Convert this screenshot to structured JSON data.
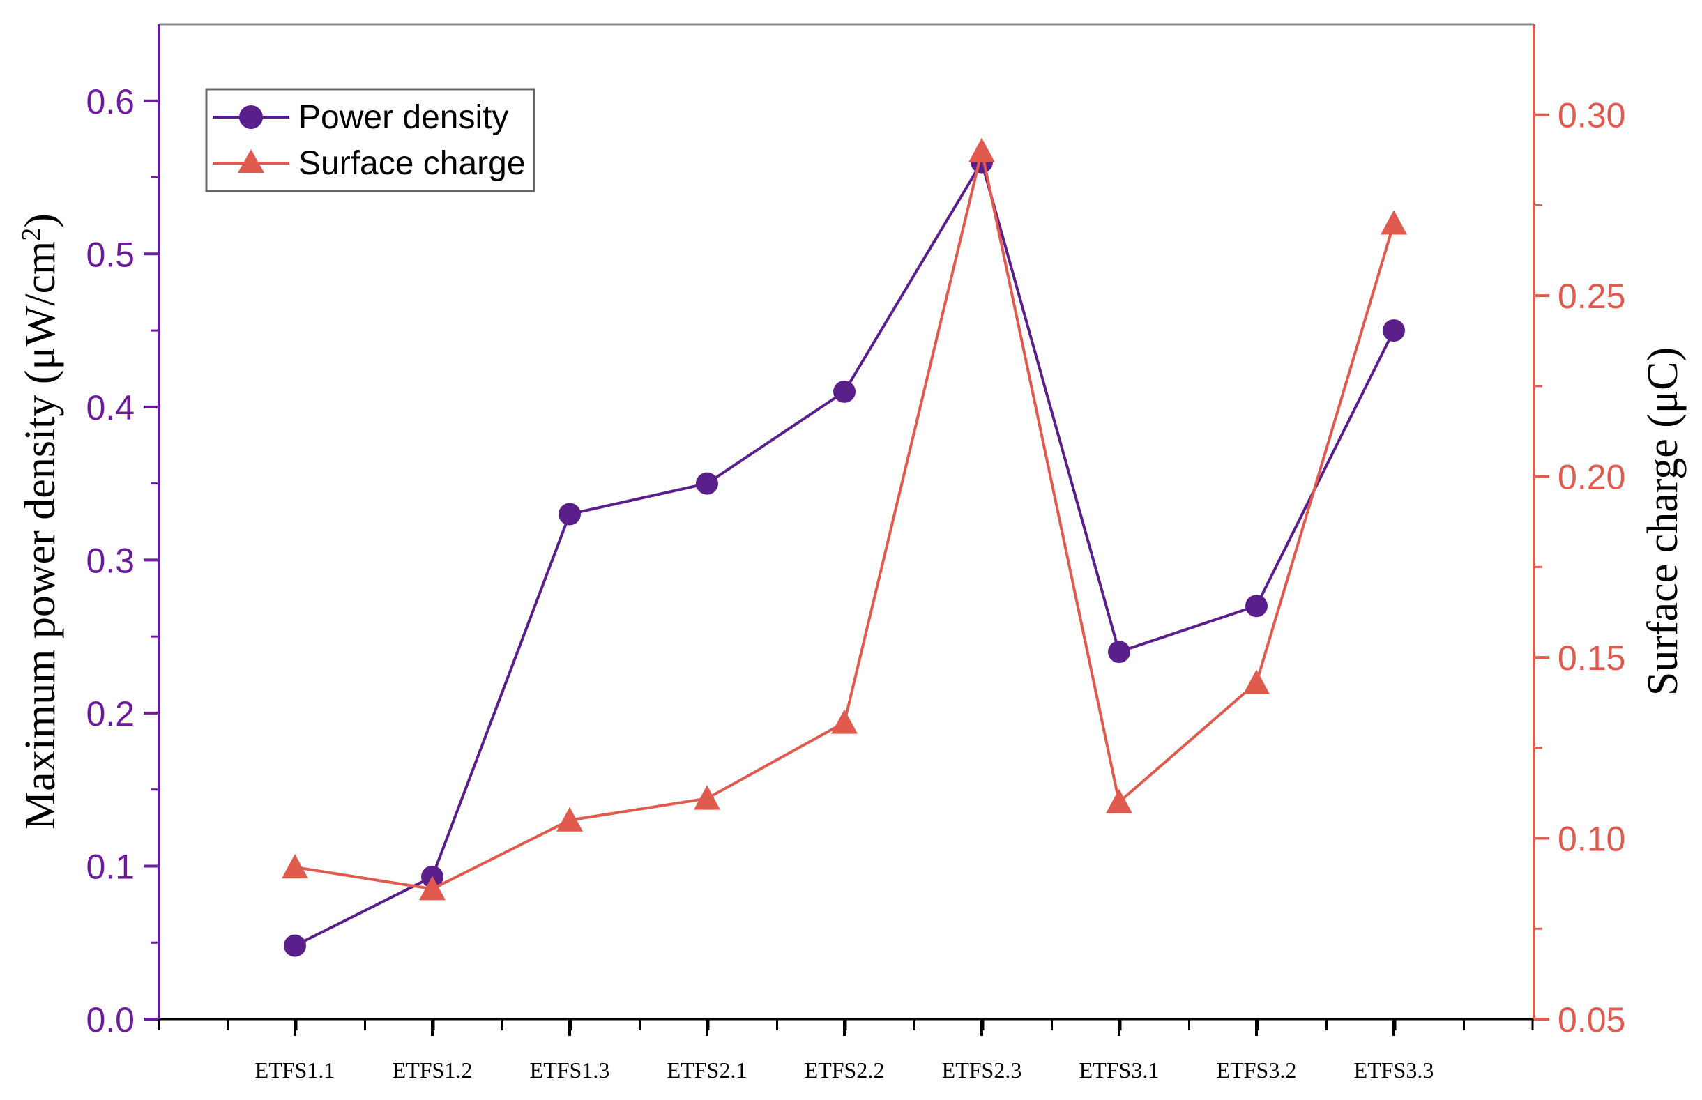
{
  "chart_data": {
    "type": "line",
    "categories": [
      "ETFS1.1",
      "ETFS1.2",
      "ETFS1.3",
      "ETFS2.1",
      "ETFS2.2",
      "ETFS2.3",
      "ETFS3.1",
      "ETFS3.2",
      "ETFS3.3"
    ],
    "series": [
      {
        "name": "Power density",
        "axis": "left",
        "marker": "circle",
        "color": "#5b1f8c",
        "values": [
          0.048,
          0.093,
          0.33,
          0.35,
          0.41,
          0.56,
          0.24,
          0.27,
          0.45
        ]
      },
      {
        "name": "Surface charge",
        "axis": "right",
        "marker": "triangle",
        "color": "#e05a4e",
        "values": [
          0.092,
          0.086,
          0.105,
          0.111,
          0.132,
          0.29,
          0.11,
          0.143,
          0.27
        ]
      }
    ],
    "y_left": {
      "label_main": "Maximum power density (μW/cm",
      "label_sup": "2",
      "label_end": ")",
      "ylim": [
        0.0,
        0.65
      ],
      "ticks": [
        0.0,
        0.1,
        0.2,
        0.3,
        0.4,
        0.5,
        0.6
      ],
      "tick_labels": [
        "0.0",
        "0.1",
        "0.2",
        "0.3",
        "0.4",
        "0.5",
        "0.6"
      ],
      "color": "#6a1b9a"
    },
    "y_right": {
      "label": "Surface charge (μC)",
      "ylim": [
        0.05,
        0.325
      ],
      "ticks": [
        0.05,
        0.1,
        0.15,
        0.2,
        0.25,
        0.3
      ],
      "tick_labels": [
        "0.05",
        "0.10",
        "0.15",
        "0.20",
        "0.25",
        "0.30"
      ],
      "color": "#e05a4e"
    },
    "xlabel": "",
    "legend": {
      "position": "top-left",
      "entries": [
        "Power density",
        "Surface charge"
      ]
    },
    "grid": false
  }
}
